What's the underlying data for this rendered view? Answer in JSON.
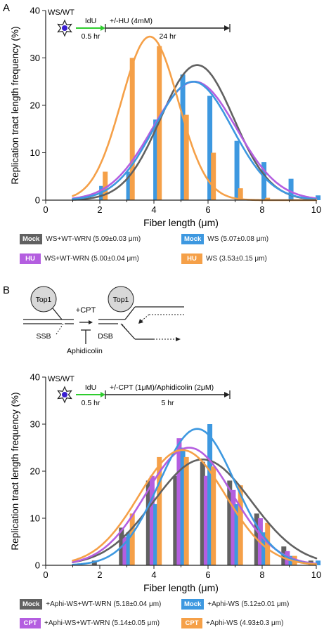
{
  "chart_data": [
    {
      "panel_label": "A",
      "type": "bar",
      "ylabel": "Replication tract length frequency (%)",
      "xlabel": "Fiber length (μm)",
      "xlim": [
        0,
        10
      ],
      "ylim": [
        0,
        40
      ],
      "xticks": [
        "0",
        "2",
        "4",
        "6",
        "8",
        "10"
      ],
      "yticks": [
        "0",
        "10",
        "20",
        "30",
        "40"
      ],
      "schematic": {
        "cell_label": "WS/WT",
        "pulse_label": "IdU",
        "pulse_time": "0.5 hr",
        "treat_label": "+/-HU (4mM)",
        "treat_time": "24 hr"
      },
      "series": [
        {
          "name": "Mock",
          "tag": "Mock",
          "label": "WS+WT-WRN (5.09±0.03 μm)",
          "color": "#616161",
          "x": [
            2,
            3,
            4,
            5,
            6,
            7,
            8,
            9,
            10
          ],
          "values": [
            0,
            0,
            0,
            0,
            0,
            0,
            0,
            0,
            0
          ],
          "fit": {
            "mu": 5.6,
            "sigma": 1.35,
            "amp": 28.5
          }
        },
        {
          "name": "HU",
          "tag": "HU",
          "label": "WS+WT-WRN (5.00±0.04 μm)",
          "color": "#b45ee0",
          "x": [
            2,
            3,
            4,
            5,
            6,
            7,
            8,
            9,
            10
          ],
          "values": [
            0,
            0,
            0,
            0,
            0,
            0,
            0,
            0,
            0
          ],
          "fit": {
            "mu": 5.5,
            "sigma": 1.55,
            "amp": 25
          }
        },
        {
          "name": "Mock",
          "tag": "Mock",
          "label": "WS (5.07±0.08 μm)",
          "color": "#3d98e0",
          "x": [
            2,
            3,
            4,
            5,
            6,
            7,
            8,
            9,
            10
          ],
          "values": [
            3,
            6,
            17,
            26.5,
            22,
            12.5,
            8,
            4.5,
            1
          ],
          "fit": {
            "mu": 5.45,
            "sigma": 1.45,
            "amp": 25
          }
        },
        {
          "name": "HU",
          "tag": "HU",
          "label": "WS (3.53±0.15 μm)",
          "color": "#f5a048",
          "x": [
            2,
            3,
            4,
            5,
            6,
            7,
            8,
            9,
            10
          ],
          "values": [
            6,
            30,
            32.5,
            18,
            10,
            2.5,
            0.5,
            0,
            0
          ],
          "fit": {
            "mu": 3.85,
            "sigma": 1.05,
            "amp": 34.5
          }
        }
      ]
    },
    {
      "panel_label": "B",
      "type": "bar",
      "ylabel": "Replication tract length frequency (%)",
      "xlabel": "Fiber length (μm)",
      "xlim": [
        0,
        10
      ],
      "ylim": [
        0,
        40
      ],
      "xticks": [
        "0",
        "2",
        "4",
        "6",
        "8",
        "10"
      ],
      "yticks": [
        "0",
        "10",
        "20",
        "30",
        "40"
      ],
      "schematic": {
        "cell_label": "WS/WT",
        "pulse_label": "IdU",
        "pulse_time": "0.5 hr",
        "treat_label": "+/-CPT (1μM)/Aphidicolin (2μM)",
        "treat_time": "5 hr"
      },
      "series": [
        {
          "name": "Mock",
          "tag": "Mock",
          "label": "+Aphi-WS+WT-WRN (5.18±0.04 μm)",
          "color": "#616161",
          "x": [
            2,
            3,
            4,
            5,
            6,
            7,
            8,
            9,
            10
          ],
          "values": [
            1,
            8,
            18,
            19,
            22,
            18,
            11,
            4,
            1
          ],
          "fit": {
            "mu": 5.8,
            "sigma": 1.8,
            "amp": 22.5
          }
        },
        {
          "name": "CPT",
          "tag": "CPT",
          "label": "+Aphi-WS+WT-WRN (5.14±0.05 μm)",
          "color": "#b45ee0",
          "x": [
            2,
            3,
            4,
            5,
            6,
            7,
            8,
            9,
            10
          ],
          "values": [
            0,
            6,
            19,
            27,
            19,
            16,
            10,
            3,
            0
          ],
          "fit": {
            "mu": 5.3,
            "sigma": 1.6,
            "amp": 25
          }
        },
        {
          "name": "Mock",
          "tag": "Mock",
          "label": "+Aphi-WS (5.12±0.01 μm)",
          "color": "#3d98e0",
          "x": [
            2,
            3,
            4,
            5,
            6,
            7,
            8,
            9,
            10
          ],
          "values": [
            0,
            7,
            13,
            25,
            30,
            13,
            7,
            2,
            1
          ],
          "fit": {
            "mu": 5.6,
            "sigma": 1.4,
            "amp": 29
          }
        },
        {
          "name": "CPT",
          "tag": "CPT",
          "label": "+Aphi-WS (4.93±0.3 μm)",
          "color": "#f5a048",
          "x": [
            2,
            3,
            4,
            5,
            6,
            7,
            8,
            9,
            10
          ],
          "values": [
            0,
            11,
            23,
            23,
            21,
            17,
            9,
            2,
            0
          ],
          "fit": {
            "mu": 5.05,
            "sigma": 1.6,
            "amp": 24.5
          }
        }
      ]
    }
  ],
  "diagram": {
    "top1_label": "Top1",
    "cpt_label": "+CPT",
    "ssb_label": "SSB",
    "dsb_label": "DSB",
    "aphidicolin_label": "Aphidicolin"
  }
}
